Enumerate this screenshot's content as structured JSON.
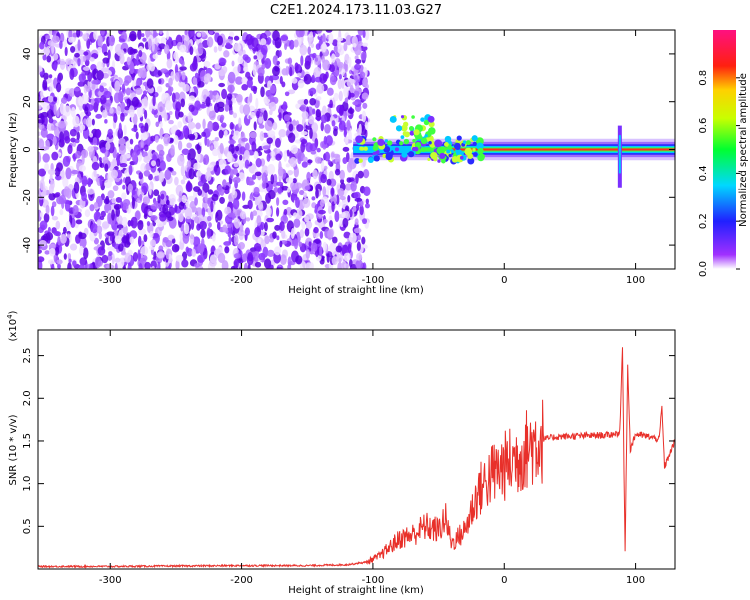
{
  "title": "C2E1.2024.173.11.03.G27",
  "chart_data": [
    {
      "type": "heatmap",
      "xlabel": "Height of straight line (km)",
      "ylabel": "Frequency (Hz)",
      "xlim": [
        -355,
        130
      ],
      "ylim": [
        -50,
        50
      ],
      "xticks": [
        -300,
        -200,
        -100,
        0,
        100
      ],
      "yticks": [
        -40,
        -20,
        0,
        20,
        40
      ],
      "colorbar": {
        "label": "Normalized spectral amplitude",
        "range": [
          0,
          1
        ],
        "ticks": [
          "0.0",
          "0.2",
          "0.4",
          "0.6",
          "0.8"
        ],
        "colormap": "rainbow (white-violet-blue-cyan-green-yellow-red-magenta)"
      },
      "features": {
        "noise_region_x": [
          -355,
          -110
        ],
        "signal_band_frequency_hz": 0,
        "signal_band_start_x": -115,
        "spike_x": 88
      },
      "grid": false
    },
    {
      "type": "line",
      "xlabel": "Height of straight line (km)",
      "ylabel": "SNR (10 * v/v)",
      "y_multiplier_label": "(x10",
      "y_multiplier_exp": "4",
      "y_multiplier_close": ")",
      "xlim": [
        -355,
        130
      ],
      "ylim": [
        0,
        2.8
      ],
      "xticks": [
        -300,
        -200,
        -100,
        0,
        100
      ],
      "yticks": [
        "0.5",
        "1.0",
        "1.5",
        "2.0",
        "2.5"
      ],
      "series_color": "#e8302a",
      "series": [
        {
          "x": [
            -355,
            -300,
            -200,
            -150,
            -120,
            -105,
            -95,
            -80,
            -70,
            -60,
            -50,
            -45,
            -40,
            -30,
            -20,
            -10,
            0,
            10,
            20,
            30,
            40,
            60,
            80,
            88,
            90,
            92,
            94,
            96,
            100,
            110,
            118,
            120,
            122,
            130
          ],
          "y": [
            0.03,
            0.03,
            0.04,
            0.04,
            0.05,
            0.08,
            0.15,
            0.35,
            0.4,
            0.5,
            0.45,
            0.6,
            0.3,
            0.45,
            0.9,
            1.1,
            1.2,
            1.3,
            1.45,
            1.52,
            1.55,
            1.56,
            1.57,
            1.6,
            2.6,
            0.2,
            2.4,
            1.4,
            1.58,
            1.55,
            1.52,
            1.9,
            1.2,
            1.5
          ]
        }
      ],
      "grid": false
    }
  ]
}
